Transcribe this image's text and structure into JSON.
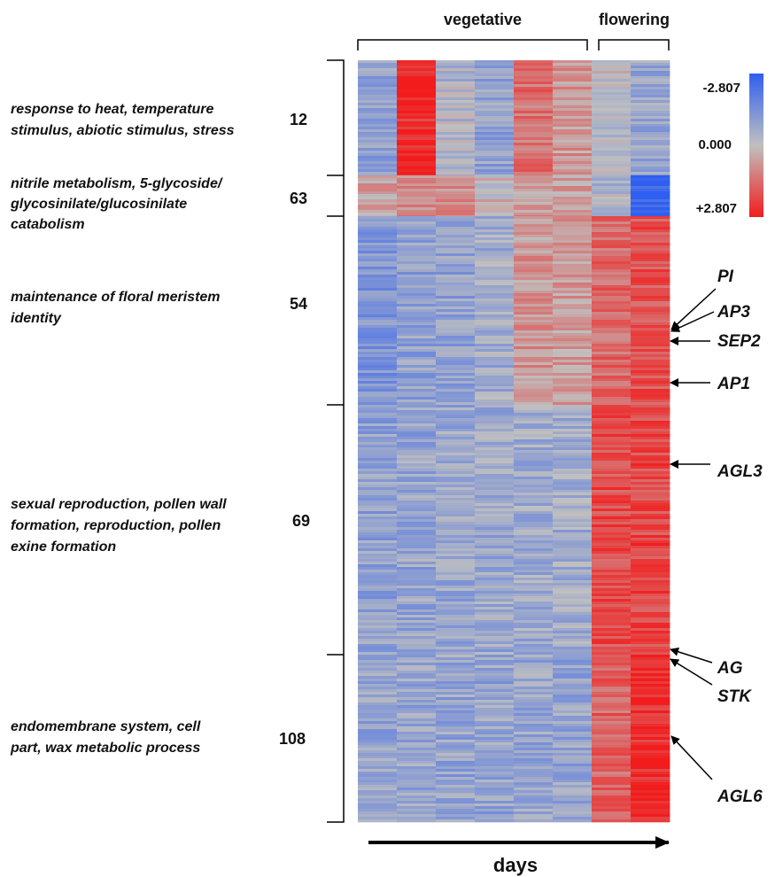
{
  "chart_data": {
    "type": "heatmap",
    "xlabel": "days",
    "column_groups": [
      {
        "label": "vegetative",
        "columns": 6
      },
      {
        "label": "flowering",
        "columns": 2
      }
    ],
    "color_scale": {
      "min_label": "-2.807",
      "mid_label": "0.000",
      "max_label": "+2.807",
      "min_value": -2.807,
      "mid_value": 0.0,
      "max_value": 2.807,
      "min_color": "#2f5ff0",
      "mid_color": "#c0c0c0",
      "max_color": "#f21c1c"
    },
    "clusters": [
      {
        "count": "12",
        "description": [
          "response to heat, temperature",
          "stimulus, abiotic stimulus, stress"
        ],
        "column_means": [
          -0.9,
          2.6,
          -0.3,
          -0.9,
          1.4,
          0.7,
          0.0,
          -0.8
        ]
      },
      {
        "count": "63",
        "description": [
          "nitrile metabolism, 5-glycoside/",
          "glycosinilate/glucosinilate",
          "catabolism"
        ],
        "column_means": [
          0.5,
          1.1,
          0.9,
          0.2,
          0.7,
          0.5,
          -0.3,
          -2.7
        ]
      },
      {
        "count": "54",
        "description": [
          "maintenance of floral meristem",
          "identity"
        ],
        "column_means": [
          -1.3,
          -0.9,
          -0.9,
          -0.6,
          0.7,
          0.6,
          1.5,
          1.9
        ]
      },
      {
        "count": "69",
        "description": [
          "sexual reproduction, pollen wall",
          "formation, reproduction, pollen",
          "exine formation"
        ],
        "column_means": [
          -0.9,
          -0.8,
          -0.7,
          -0.7,
          -0.6,
          -0.6,
          2.0,
          2.1
        ]
      },
      {
        "count": "108",
        "description": [
          "endomembrane system, cell",
          "part, wax metabolic process"
        ],
        "column_means": [
          -0.8,
          -0.8,
          -0.8,
          -0.8,
          -0.8,
          -0.8,
          1.6,
          2.6
        ]
      }
    ],
    "highlighted_genes": [
      "PI",
      "AP3",
      "SEP2",
      "AP1",
      "AGL3",
      "AG",
      "STK",
      "AGL6"
    ]
  }
}
